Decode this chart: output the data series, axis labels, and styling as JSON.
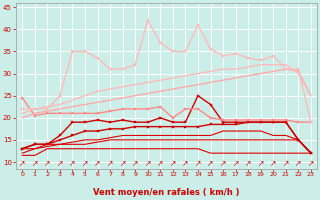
{
  "background_color": "#cceee8",
  "grid_color": "#ffffff",
  "xlabel": "Vent moyen/en rafales ( km/h )",
  "xlabel_color": "#cc0000",
  "tick_color": "#cc0000",
  "xlim": [
    -0.5,
    23.5
  ],
  "ylim": [
    8.5,
    46
  ],
  "yticks": [
    10,
    15,
    20,
    25,
    30,
    35,
    40,
    45
  ],
  "xticks": [
    0,
    1,
    2,
    3,
    4,
    5,
    6,
    7,
    8,
    9,
    10,
    11,
    12,
    13,
    14,
    15,
    16,
    17,
    18,
    19,
    20,
    21,
    22,
    23
  ],
  "lines": [
    {
      "x": [
        0,
        1,
        2,
        3,
        4,
        5,
        6,
        7,
        8,
        9,
        10,
        11,
        12,
        13,
        14,
        15,
        16,
        17,
        18,
        19,
        20,
        21,
        22,
        23
      ],
      "y": [
        11.5,
        11.5,
        13,
        13,
        13,
        13,
        13,
        13,
        13,
        13,
        13,
        13,
        13,
        13,
        13,
        12,
        12,
        12,
        12,
        12,
        12,
        12,
        12,
        12
      ],
      "color": "#dd0000",
      "lw": 0.8,
      "marker": null
    },
    {
      "x": [
        0,
        1,
        2,
        3,
        4,
        5,
        6,
        7,
        8,
        9,
        10,
        11,
        12,
        13,
        14,
        15,
        16,
        17,
        18,
        19,
        20,
        21,
        22,
        23
      ],
      "y": [
        12,
        13,
        13.5,
        14,
        14,
        14,
        14.5,
        15,
        15,
        15,
        15,
        15,
        15,
        15,
        15,
        15,
        15,
        15,
        15,
        15,
        15,
        15,
        15,
        12
      ],
      "color": "#dd0000",
      "lw": 0.8,
      "marker": null
    },
    {
      "x": [
        0,
        1,
        2,
        3,
        4,
        5,
        6,
        7,
        8,
        9,
        10,
        11,
        12,
        13,
        14,
        15,
        16,
        17,
        18,
        19,
        20,
        21,
        22,
        23
      ],
      "y": [
        13,
        13,
        14,
        14,
        14.5,
        15,
        15,
        15.5,
        16,
        16,
        16,
        16,
        16,
        16,
        16,
        16,
        17,
        17,
        17,
        17,
        16,
        16,
        15,
        12
      ],
      "color": "#dd0000",
      "lw": 0.8,
      "marker": null
    },
    {
      "x": [
        0,
        1,
        2,
        3,
        4,
        5,
        6,
        7,
        8,
        9,
        10,
        11,
        12,
        13,
        14,
        15,
        16,
        17,
        18,
        19,
        20,
        21,
        22,
        23
      ],
      "y": [
        13,
        14,
        14,
        15,
        16,
        17,
        17,
        17.5,
        17.5,
        18,
        18,
        18,
        18,
        18,
        18,
        18.5,
        18.5,
        18.5,
        19,
        19,
        19,
        19,
        15,
        12
      ],
      "color": "#cc0000",
      "lw": 1.0,
      "marker": "s",
      "markersize": 1.8
    },
    {
      "x": [
        0,
        1,
        2,
        3,
        4,
        5,
        6,
        7,
        8,
        9,
        10,
        11,
        12,
        13,
        14,
        15,
        16,
        17,
        18,
        19,
        20,
        21,
        22,
        23
      ],
      "y": [
        13,
        14,
        14,
        16,
        19,
        19,
        19.5,
        19,
        19.5,
        19,
        19,
        20,
        19,
        19,
        25,
        23,
        19,
        19,
        19,
        19,
        19,
        19,
        15,
        12
      ],
      "color": "#cc0000",
      "lw": 1.0,
      "marker": "s",
      "markersize": 2.0
    },
    {
      "x": [
        0,
        1,
        2,
        3,
        4,
        5,
        6,
        7,
        8,
        9,
        10,
        11,
        12,
        13,
        14,
        15,
        16,
        17,
        18,
        19,
        20,
        21,
        22,
        23
      ],
      "y": [
        24.5,
        20.5,
        21,
        21,
        21,
        21,
        21,
        21.5,
        22,
        22,
        22,
        22.5,
        20,
        22,
        22,
        20,
        19.5,
        19.5,
        19.5,
        19.5,
        19.5,
        19.5,
        19,
        19
      ],
      "color": "#ff8888",
      "lw": 1.0,
      "marker": "s",
      "markersize": 2.0
    },
    {
      "x": [
        0,
        1,
        2,
        3,
        4,
        5,
        6,
        7,
        8,
        9,
        10,
        11,
        12,
        13,
        14,
        15,
        16,
        17,
        18,
        19,
        20,
        21,
        22,
        23
      ],
      "y": [
        20,
        21,
        21.5,
        22,
        22.5,
        23,
        23.5,
        24,
        24.5,
        25,
        25.5,
        26,
        26.5,
        27,
        27.5,
        28,
        28.5,
        29,
        29.5,
        30,
        30.5,
        31,
        30.5,
        25
      ],
      "color": "#ffaaaa",
      "lw": 1.0,
      "marker": null
    },
    {
      "x": [
        0,
        1,
        2,
        3,
        4,
        5,
        6,
        7,
        8,
        9,
        10,
        11,
        12,
        13,
        14,
        15,
        16,
        17,
        18,
        19,
        20,
        21,
        22,
        23
      ],
      "y": [
        21,
        22,
        22.5,
        23,
        24,
        25,
        26,
        26.5,
        27,
        27.5,
        28,
        28.5,
        29,
        29.5,
        30,
        30.5,
        31,
        31,
        31.5,
        32,
        32,
        32,
        30,
        25
      ],
      "color": "#ffbbbb",
      "lw": 1.0,
      "marker": null
    },
    {
      "x": [
        0,
        1,
        2,
        3,
        4,
        5,
        6,
        7,
        8,
        9,
        10,
        11,
        12,
        13,
        14,
        15,
        16,
        17,
        18,
        19,
        20,
        21,
        22,
        23
      ],
      "y": [
        22,
        22,
        22,
        25,
        35,
        35,
        33.5,
        31,
        31,
        32,
        42,
        37,
        35,
        35,
        41,
        35.5,
        34,
        34.5,
        33.5,
        33,
        34,
        31,
        31,
        19
      ],
      "color": "#ffbbbb",
      "lw": 1.0,
      "marker": "s",
      "markersize": 2.0
    }
  ],
  "arrow_symbol": "↗",
  "arrow_color": "#cc0000",
  "arrow_fontsize": 5.5
}
